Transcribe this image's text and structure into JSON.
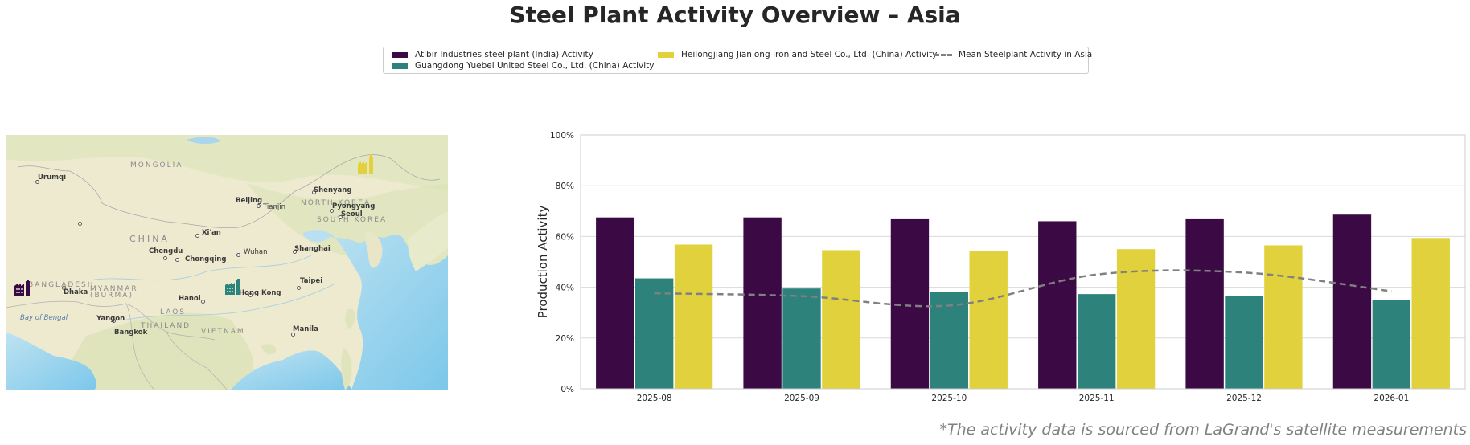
{
  "page": {
    "title": "Steel Plant Activity Overview – Asia",
    "source_note": "*The activity data is sourced from LaGrand's satellite measurements"
  },
  "legend": {
    "items": [
      {
        "label": "Atibir Industries steel plant (India) Activity",
        "color": "#3b0a45",
        "kind": "bar"
      },
      {
        "label": "Guangdong Yuebei United Steel Co., Ltd. (China) Activity",
        "color": "#2d827c",
        "kind": "bar"
      },
      {
        "label": "Heilongjiang Jianlong Iron and Steel Co., Ltd. (China) Activity",
        "color": "#e1d13c",
        "kind": "bar"
      },
      {
        "label": "Mean Steelplant Activity in Asia",
        "color": "#808080",
        "kind": "dashed-line"
      }
    ]
  },
  "map": {
    "countries": [
      "MONGOLIA",
      "CHINA",
      "NORTH KOREA",
      "SOUTH KOREA",
      "BANGLADESH",
      "MYANMAR",
      "(BURMA)",
      "LAOS",
      "THAILAND",
      "VIETNAM"
    ],
    "cities": [
      "Urumqi",
      "Beijing",
      "Tianjin",
      "Shenyang",
      "Pyongyang",
      "Seoul",
      "Xi'an",
      "Chengdu",
      "Chongqing",
      "Wuhan",
      "Shanghai",
      "Taipei",
      "Hong Kong",
      "Hanoi",
      "Dhaka",
      "Yangon",
      "Bangkok",
      "Manila"
    ],
    "seas": [
      "Bay of Bengal"
    ],
    "plants": [
      {
        "name": "Atibir Industries steel plant (India)",
        "color": "#3b0a45",
        "icon": "factory-icon"
      },
      {
        "name": "Guangdong Yuebei United Steel Co., Ltd. (China)",
        "color": "#2d827c",
        "icon": "factory-icon"
      },
      {
        "name": "Heilongjiang Jianlong Iron and Steel Co., Ltd. (China)",
        "color": "#e1d13c",
        "icon": "factory-icon"
      }
    ]
  },
  "chart_data": {
    "type": "bar",
    "title": "",
    "xlabel": "",
    "ylabel": "Production Activity",
    "ylim": [
      0,
      100
    ],
    "yticks": [
      "0%",
      "20%",
      "40%",
      "60%",
      "80%",
      "100%"
    ],
    "ytick_values": [
      0,
      20,
      40,
      60,
      80,
      100
    ],
    "grid": true,
    "legend_position": "top-center",
    "categories": [
      "2025-08",
      "2025-09",
      "2025-10",
      "2025-11",
      "2025-12",
      "2026-01"
    ],
    "series": [
      {
        "name": "Atibir Industries steel plant (India) Activity",
        "color": "#3b0a45",
        "type": "bar",
        "values": [
          67.5,
          67.5,
          66.8,
          66.0,
          66.8,
          68.6
        ]
      },
      {
        "name": "Guangdong Yuebei United Steel Co., Ltd. (China) Activity",
        "color": "#2d827c",
        "type": "bar",
        "values": [
          43.5,
          39.5,
          38.0,
          37.3,
          36.5,
          35.1
        ]
      },
      {
        "name": "Heilongjiang Jianlong Iron and Steel Co., Ltd. (China) Activity",
        "color": "#e1d13c",
        "type": "bar",
        "values": [
          56.8,
          54.6,
          54.2,
          55.0,
          56.5,
          59.4
        ]
      },
      {
        "name": "Mean Steelplant Activity in Asia",
        "color": "#808080",
        "type": "line-dashed",
        "values": [
          37.6,
          36.5,
          32.8,
          45.0,
          45.8,
          38.4
        ]
      }
    ]
  }
}
